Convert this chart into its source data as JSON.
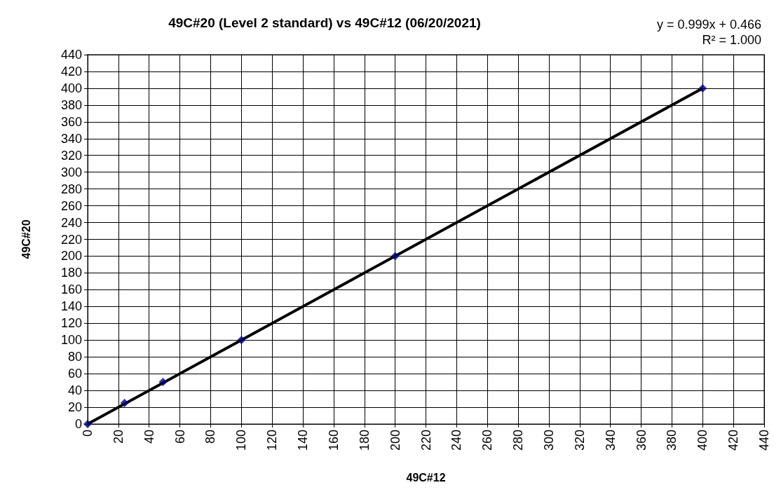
{
  "chart_data": {
    "type": "scatter",
    "title": "49C#20 (Level 2 standard) vs 49C#12 (06/20/2021)",
    "xlabel": "49C#12",
    "ylabel": "49C#20",
    "annotations": [
      "y = 0.999x + 0.466",
      "R² = 1.000"
    ],
    "series": [
      {
        "type": "scatter",
        "color": "#000080",
        "marker": "diamond",
        "x": [
          0,
          24,
          49,
          100,
          200,
          400
        ],
        "values": [
          0,
          25,
          50,
          100,
          200,
          400
        ]
      },
      {
        "type": "line",
        "color": "#000000",
        "marker": "none",
        "line_style": "solid",
        "x": [
          0,
          400
        ],
        "values": [
          0,
          400
        ]
      }
    ],
    "xlim": [
      0,
      440
    ],
    "xticks": [
      0,
      20,
      40,
      60,
      80,
      100,
      120,
      140,
      160,
      180,
      200,
      220,
      240,
      260,
      280,
      300,
      320,
      340,
      360,
      380,
      400,
      420,
      440
    ],
    "ylim": [
      0,
      440
    ],
    "yticks": [
      0,
      20,
      40,
      60,
      80,
      100,
      120,
      140,
      160,
      180,
      200,
      220,
      240,
      260,
      280,
      300,
      320,
      340,
      360,
      380,
      400,
      420,
      440
    ],
    "grid": true
  }
}
